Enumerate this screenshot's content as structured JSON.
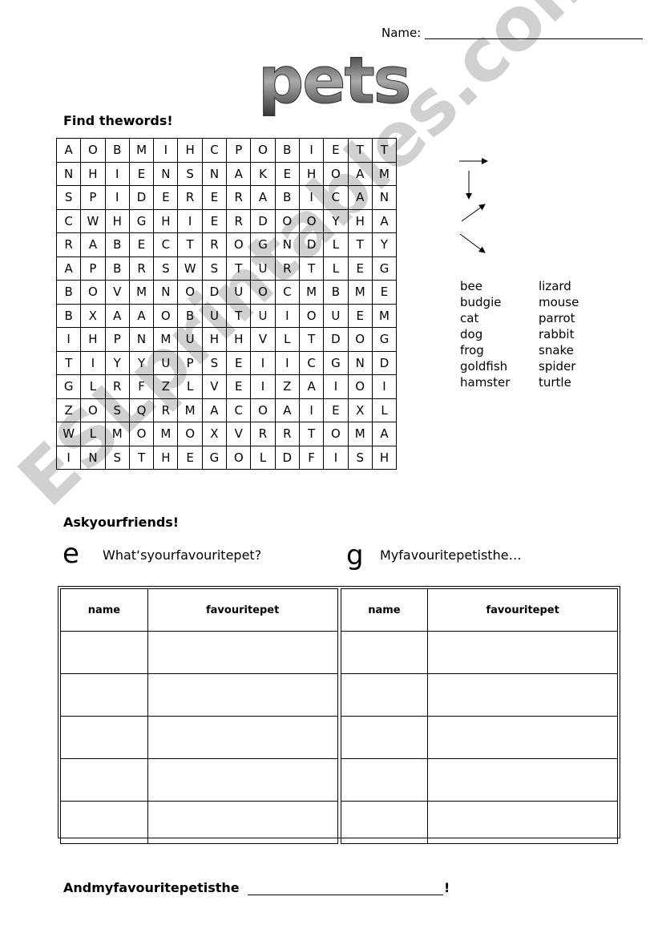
{
  "header": {
    "name_label": "Name:",
    "title": "pets"
  },
  "wordsearch": {
    "heading": "Find thewords!",
    "rows": [
      "AOBMIHCPOBIETT",
      "NHIENSNAKEHOAM",
      "SPIDERERABICAN",
      "CWHGHIERDOOYHA",
      "RABECTROGNDLTY",
      "APBRSWSTURTLEG",
      "BOVMNODUOCMBME",
      "BXAAOBUTUIOUEM",
      "IHPNMUHHVLTDOG",
      "TIYYUPSEIICGND",
      "GLRFZLVEIZAIOI",
      "ZOSQRMACOAIEXL",
      "WLMOMOXVRRTOMA",
      "INSTHEGOLDFISH"
    ],
    "directions": [
      "right",
      "down",
      "up-right",
      "down-right"
    ],
    "words": [
      "bee",
      "lizard",
      "budgie",
      "mouse",
      "cat",
      "parrot",
      "dog",
      "rabbit",
      "frog",
      "snake",
      "goldfish",
      "spider",
      "hamster",
      "turtle"
    ]
  },
  "survey": {
    "heading": "Askyourfriends!",
    "bubble_question_icon": "e",
    "question": "What‘syourfavouritepet?",
    "bubble_answer_icon": "g",
    "answer": "Myfavouritepetisthe…",
    "columns": [
      "name",
      "favouritepet",
      "name",
      "favouritepet"
    ],
    "empty_rows": 5
  },
  "footer": {
    "sentence": "Andmyfavouritepetisthe",
    "end": "!"
  },
  "watermark": "ESLprintables.com"
}
